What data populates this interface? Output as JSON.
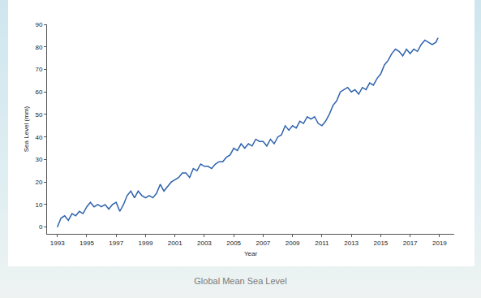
{
  "chart_data": {
    "type": "line",
    "title": "Global Mean Sea Level",
    "x_label": "Year",
    "y_label": "Sea Level (mm)",
    "color": "#2e62ad",
    "grid": false,
    "xlim": [
      1992.3,
      2020.0
    ],
    "xticks": [
      1993,
      1995,
      1997,
      1999,
      2001,
      2003,
      2005,
      2007,
      2009,
      2011,
      2013,
      2015,
      2017,
      2019
    ],
    "ylim": [
      -3,
      90
    ],
    "yticks": [
      0,
      10,
      20,
      30,
      40,
      50,
      60,
      70,
      80,
      90
    ],
    "x": [
      1993.0,
      1993.25,
      1993.5,
      1993.75,
      1994.0,
      1994.25,
      1994.5,
      1994.75,
      1995.0,
      1995.25,
      1995.5,
      1995.75,
      1996.0,
      1996.25,
      1996.5,
      1996.75,
      1997.0,
      1997.25,
      1997.5,
      1997.75,
      1998.0,
      1998.25,
      1998.5,
      1998.75,
      1999.0,
      1999.25,
      1999.5,
      1999.75,
      2000.0,
      2000.25,
      2000.5,
      2000.75,
      2001.0,
      2001.25,
      2001.5,
      2001.75,
      2002.0,
      2002.25,
      2002.5,
      2002.75,
      2003.0,
      2003.25,
      2003.5,
      2003.75,
      2004.0,
      2004.25,
      2004.5,
      2004.75,
      2005.0,
      2005.25,
      2005.5,
      2005.75,
      2006.0,
      2006.25,
      2006.5,
      2006.75,
      2007.0,
      2007.25,
      2007.5,
      2007.75,
      2008.0,
      2008.25,
      2008.5,
      2008.75,
      2009.0,
      2009.25,
      2009.5,
      2009.75,
      2010.0,
      2010.25,
      2010.5,
      2010.75,
      2011.0,
      2011.25,
      2011.5,
      2011.75,
      2012.0,
      2012.25,
      2012.5,
      2012.75,
      2013.0,
      2013.25,
      2013.5,
      2013.75,
      2014.0,
      2014.25,
      2014.5,
      2014.75,
      2015.0,
      2015.25,
      2015.5,
      2015.75,
      2016.0,
      2016.25,
      2016.5,
      2016.75,
      2017.0,
      2017.25,
      2017.5,
      2017.75,
      2018.0,
      2018.25,
      2018.5,
      2018.75,
      2018.9
    ],
    "values": [
      0,
      4,
      5,
      3,
      6,
      5,
      7,
      6,
      9,
      11,
      9,
      10,
      9,
      10,
      8,
      10,
      11,
      7,
      10,
      14,
      16,
      13,
      16,
      14,
      13,
      14,
      13,
      15,
      19,
      16,
      18,
      20,
      21,
      22,
      24,
      24,
      22,
      26,
      25,
      28,
      27,
      27,
      26,
      28,
      29,
      29,
      31,
      32,
      35,
      34,
      37,
      35,
      37,
      36,
      39,
      38,
      38,
      36,
      39,
      37,
      40,
      41,
      45,
      43,
      45,
      44,
      47,
      46,
      49,
      48,
      49,
      46,
      45,
      47,
      50,
      54,
      56,
      60,
      61,
      62,
      60,
      61,
      59,
      62,
      61,
      64,
      63,
      66,
      68,
      72,
      74,
      77,
      79,
      78,
      76,
      79,
      77,
      79,
      78,
      81,
      83,
      82,
      81,
      82,
      84
    ]
  }
}
